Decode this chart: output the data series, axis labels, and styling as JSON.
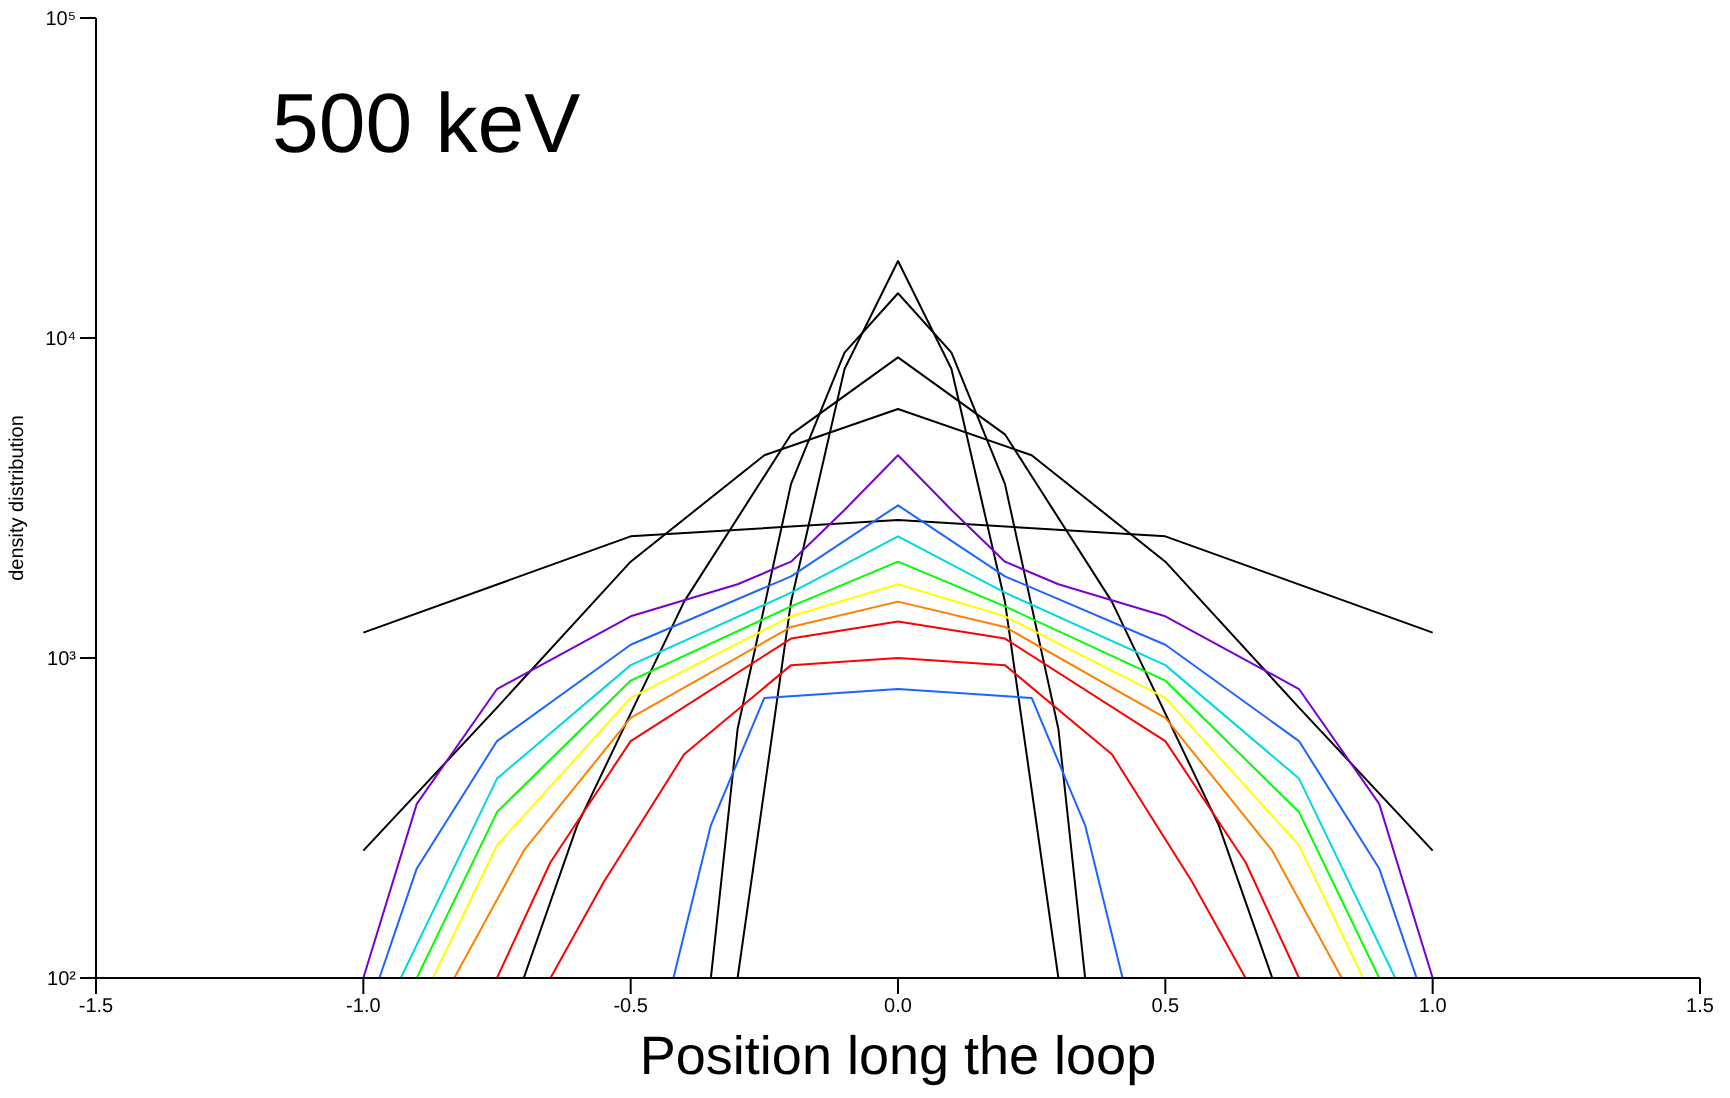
{
  "chart_data": {
    "type": "line",
    "title": "500 keV",
    "xlabel": "Position long the loop",
    "ylabel": "density distribution",
    "log": "y",
    "marker": "none",
    "line_style": "solid",
    "xlim": [
      -1.5,
      1.5
    ],
    "xticks": [
      {
        "value": -1.5,
        "label": "-1.5"
      },
      {
        "value": -1,
        "label": "-1.0"
      },
      {
        "value": -0.5,
        "label": "-0.5"
      },
      {
        "value": 0,
        "label": "0.0"
      },
      {
        "value": 0.5,
        "label": "0.5"
      },
      {
        "value": 1,
        "label": "1.0"
      },
      {
        "value": 1.5,
        "label": "1.5"
      }
    ],
    "ylim": [
      100,
      100000
    ],
    "yticks": [
      {
        "value": 100,
        "label": "10²"
      },
      {
        "value": 1000,
        "label": "10³"
      },
      {
        "value": 10000,
        "label": "10⁴"
      },
      {
        "value": 100000,
        "label": "10⁵"
      }
    ],
    "series": [
      {
        "color": "#000000",
        "x": [
          -0.3,
          -0.2,
          -0.1,
          0,
          0.1,
          0.2,
          0.3
        ],
        "values": [
          100,
          1500,
          8000,
          17400,
          8000,
          1500,
          100
        ]
      },
      {
        "color": "#000000",
        "x": [
          -0.35,
          -0.3,
          -0.2,
          -0.1,
          0,
          0.1,
          0.2,
          0.3,
          0.35
        ],
        "values": [
          100,
          600,
          3500,
          9000,
          13800,
          9000,
          3500,
          600,
          100
        ]
      },
      {
        "color": "#000000",
        "x": [
          -0.7,
          -0.6,
          -0.4,
          -0.2,
          0,
          0.2,
          0.4,
          0.6,
          0.7
        ],
        "values": [
          100,
          300,
          1500,
          5000,
          8700,
          5000,
          1500,
          300,
          100
        ]
      },
      {
        "color": "#000000",
        "x": [
          -1,
          -0.75,
          -0.5,
          -0.25,
          0,
          0.25,
          0.5,
          0.75,
          1
        ],
        "values": [
          250,
          700,
          2000,
          4300,
          6000,
          4300,
          2000,
          700,
          250
        ]
      },
      {
        "color": "#000000",
        "x": [
          -1,
          -0.5,
          0,
          0.5,
          1
        ],
        "values": [
          1200,
          2400,
          2700,
          2400,
          1200
        ]
      },
      {
        "color": "#7a00d0",
        "x": [
          -1,
          -0.9,
          -0.75,
          -0.5,
          -0.3,
          -0.2,
          -0.1,
          0,
          0.1,
          0.2,
          0.3,
          0.5,
          0.75,
          0.9,
          1
        ],
        "values": [
          100,
          350,
          800,
          1350,
          1700,
          2000,
          2900,
          4300,
          2900,
          2000,
          1700,
          1350,
          800,
          350,
          100
        ]
      },
      {
        "color": "#1e64ff",
        "x": [
          -0.97,
          -0.9,
          -0.75,
          -0.5,
          -0.2,
          0,
          0.2,
          0.5,
          0.75,
          0.9,
          0.97
        ],
        "values": [
          100,
          220,
          550,
          1100,
          1800,
          3000,
          1800,
          1100,
          550,
          220,
          100
        ]
      },
      {
        "color": "#00d8e0",
        "x": [
          -0.93,
          -0.75,
          -0.5,
          -0.2,
          0,
          0.2,
          0.5,
          0.75,
          0.93
        ],
        "values": [
          100,
          420,
          950,
          1600,
          2400,
          1600,
          950,
          420,
          100
        ]
      },
      {
        "color": "#00ff00",
        "x": [
          -0.9,
          -0.75,
          -0.5,
          -0.2,
          0,
          0.2,
          0.5,
          0.75,
          0.9
        ],
        "values": [
          100,
          330,
          850,
          1450,
          2000,
          1450,
          850,
          330,
          100
        ]
      },
      {
        "color": "#ffff00",
        "x": [
          -0.87,
          -0.75,
          -0.5,
          -0.2,
          0,
          0.2,
          0.5,
          0.75,
          0.87
        ],
        "values": [
          100,
          260,
          750,
          1350,
          1700,
          1350,
          750,
          260,
          100
        ]
      },
      {
        "color": "#ff8000",
        "x": [
          -0.83,
          -0.7,
          -0.5,
          -0.2,
          0,
          0.2,
          0.5,
          0.7,
          0.83
        ],
        "values": [
          100,
          250,
          650,
          1250,
          1500,
          1250,
          650,
          250,
          100
        ]
      },
      {
        "color": "#ff0000",
        "x": [
          -0.75,
          -0.65,
          -0.5,
          -0.2,
          0,
          0.2,
          0.5,
          0.65,
          0.75
        ],
        "values": [
          100,
          230,
          550,
          1150,
          1300,
          1150,
          550,
          230,
          100
        ]
      },
      {
        "color": "#ff0000",
        "x": [
          -0.65,
          -0.55,
          -0.4,
          -0.2,
          0,
          0.2,
          0.4,
          0.55,
          0.65
        ],
        "values": [
          100,
          200,
          500,
          950,
          1000,
          950,
          500,
          200,
          100
        ]
      },
      {
        "color": "#1e64ff",
        "x": [
          -0.42,
          -0.35,
          -0.25,
          0,
          0.25,
          0.35,
          0.42
        ],
        "values": [
          100,
          300,
          750,
          800,
          750,
          300,
          100
        ]
      }
    ]
  }
}
